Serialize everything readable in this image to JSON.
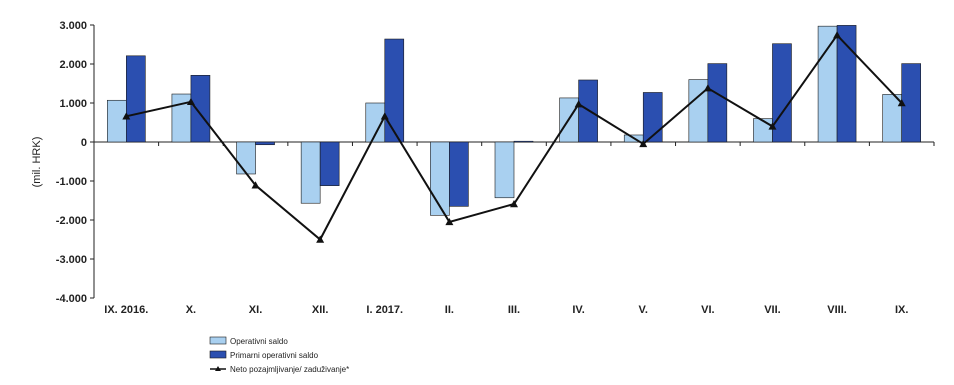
{
  "chart_data": {
    "type": "bar",
    "ylabel": "(mil. HRK)",
    "ylim": [
      -4000,
      3000
    ],
    "yticks": [
      3000,
      2000,
      1000,
      0,
      -1000,
      -2000,
      -3000,
      -4000
    ],
    "ytick_labels": [
      "3.000",
      "2.000",
      "1.000",
      "0",
      "-1.000",
      "-2.000",
      "-3.000",
      "-4.000"
    ],
    "categories": [
      "IX. 2016.",
      "X.",
      "XI.",
      "XII.",
      "I. 2017.",
      "II.",
      "III.",
      "IV.",
      "V.",
      "VI.",
      "VII.",
      "VIII.",
      "IX."
    ],
    "series": [
      {
        "name": "Operativni saldo",
        "type": "bar",
        "color": "#a9d0f0",
        "values": [
          1070,
          1230,
          -820,
          -1570,
          1000,
          -1880,
          -1430,
          1130,
          180,
          1600,
          600,
          2970,
          1220
        ]
      },
      {
        "name": "Primarni operativni saldo",
        "type": "bar",
        "color": "#2b4fb0",
        "values": [
          2210,
          1710,
          -70,
          -1120,
          2640,
          -1650,
          20,
          1590,
          1270,
          2010,
          2520,
          2990,
          2010
        ]
      },
      {
        "name": "Neto pozajmljivanje/ zaduživanje*",
        "type": "line",
        "color": "#111111",
        "values": [
          660,
          1030,
          -1110,
          -2500,
          660,
          -2050,
          -1590,
          970,
          -50,
          1380,
          400,
          2740,
          1000
        ]
      }
    ],
    "grid": false,
    "legend": "bottom-left"
  }
}
